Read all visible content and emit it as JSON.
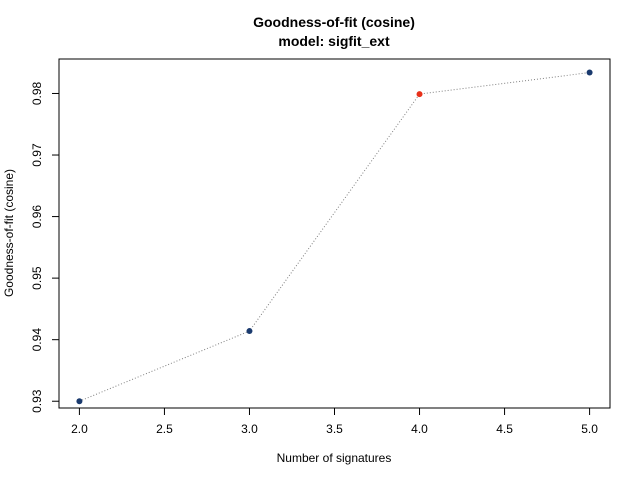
{
  "chart_data": {
    "type": "line",
    "title": "Goodness-of-fit (cosine)",
    "subtitle": "model: sigfit_ext",
    "xlabel": "Number of signatures",
    "ylabel": "Goodness-of-fit (cosine)",
    "xlim": [
      1.88,
      5.12
    ],
    "ylim": [
      0.9289,
      0.9856
    ],
    "x_ticks": [
      2.0,
      2.5,
      3.0,
      3.5,
      4.0,
      4.5,
      5.0
    ],
    "x_tick_labels": [
      "2.0",
      "2.5",
      "3.0",
      "3.5",
      "4.0",
      "4.5",
      "5.0"
    ],
    "y_ticks": [
      0.93,
      0.94,
      0.95,
      0.96,
      0.97,
      0.98
    ],
    "y_tick_labels": [
      "0.93",
      "0.94",
      "0.95",
      "0.96",
      "0.97",
      "0.98"
    ],
    "line_style": "dotted",
    "line_color": "#808080",
    "grid": false,
    "series": [
      {
        "points": [
          {
            "x": 2,
            "y": 0.93,
            "color": "#1a3a6e"
          },
          {
            "x": 3,
            "y": 0.9414,
            "color": "#1a3a6e"
          },
          {
            "x": 4,
            "y": 0.9799,
            "color": "#e8311a"
          },
          {
            "x": 5,
            "y": 0.9834,
            "color": "#1a3a6e"
          }
        ]
      }
    ]
  }
}
